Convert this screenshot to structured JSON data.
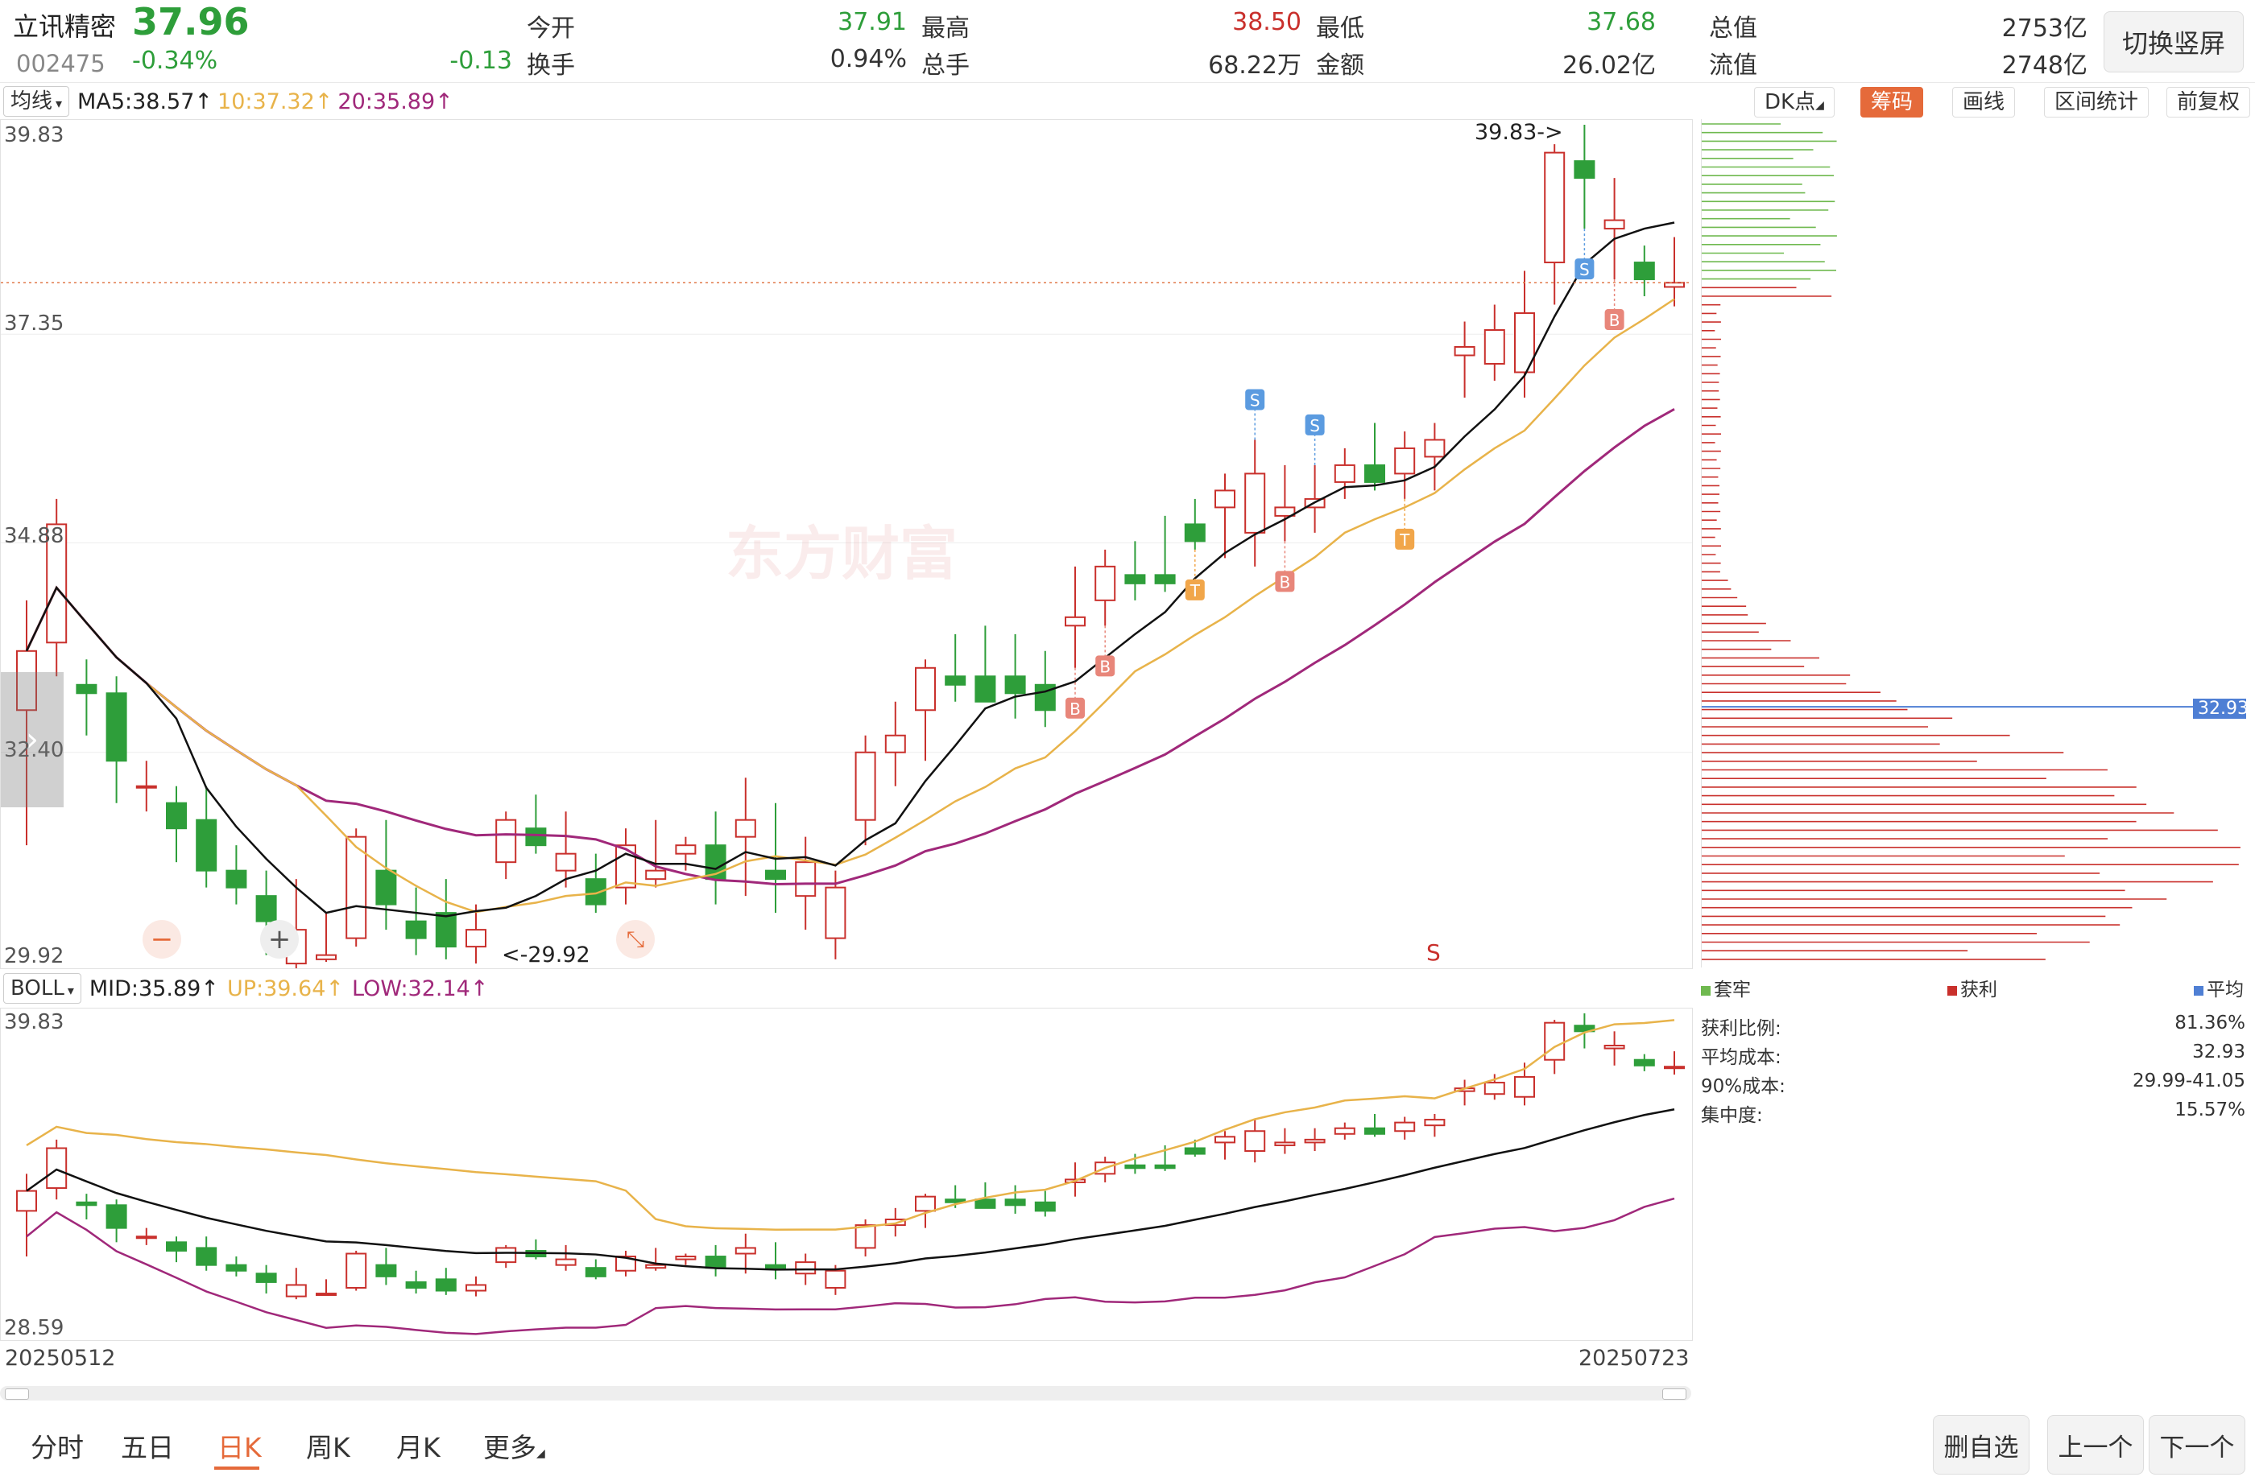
{
  "stock": {
    "name": "立讯精密",
    "price": "37.96",
    "code": "002475",
    "change_pct": "-0.34%",
    "change": "-0.13"
  },
  "quote": {
    "open_label": "今开",
    "open": "37.91",
    "high_label": "最高",
    "high": "38.50",
    "low_label": "最低",
    "low": "37.68",
    "mcap_label": "总值",
    "mcap": "2753亿",
    "turnover_label": "换手",
    "turnover": "0.94%",
    "volume_label": "总手",
    "volume": "68.22万",
    "amount_label": "金额",
    "amount": "26.02亿",
    "float_label": "流值",
    "float": "2748亿"
  },
  "switch_label": "切换竖屏",
  "main_indicator": {
    "selector": "均线",
    "ma5": "MA5:38.57↑",
    "ma10": "10:37.32↑",
    "ma20": "20:35.89↑"
  },
  "tools": {
    "dk": "DK点",
    "chip": "筹码",
    "draw": "画线",
    "range": "区间统计",
    "adjust": "前复权"
  },
  "main_axis": [
    "39.83",
    "37.35",
    "34.88",
    "32.40",
    "29.92"
  ],
  "main_annotations": {
    "high_mark": "39.83->",
    "low_mark": "<-29.92",
    "watermark": "东方财富",
    "s_marker": "S",
    "buy_marker": "B",
    "sell_marker": "S",
    "t_marker": "T"
  },
  "sub_indicator": {
    "selector": "BOLL",
    "mid": "MID:35.89↑",
    "up": "UP:39.64↑",
    "low": "LOW:32.14↑"
  },
  "sub_axis": [
    "39.83",
    "28.59"
  ],
  "dates": {
    "start": "20250512",
    "end": "20250723"
  },
  "chip": {
    "legend_trapped": "套牢",
    "legend_profit": "获利",
    "legend_avg": "平均",
    "avg_tag": "32.93",
    "profit_ratio_label": "获利比例:",
    "profit_ratio": "81.36%",
    "avg_cost_label": "平均成本:",
    "avg_cost": "32.93",
    "cost90_label": "90%成本:",
    "cost90": "29.99-41.05",
    "concentration_label": "集中度:",
    "concentration": "15.57%"
  },
  "nav": {
    "tabs": [
      "分时",
      "五日",
      "日K",
      "周K",
      "月K",
      "更多"
    ],
    "active": "日K"
  },
  "actions": {
    "remove": "删自选",
    "prev": "上一个",
    "next": "下一个"
  },
  "colors": {
    "up": "#c9302c",
    "down": "#2e9e3a",
    "ma5": "#111111",
    "ma10": "#e8b34a",
    "ma20": "#a0287a",
    "accent": "#e56a3a"
  },
  "chart_data": {
    "type": "candlestick",
    "title": "",
    "xlabel": "",
    "ylabel": "",
    "x_range": [
      "20250512",
      "20250723"
    ],
    "ylim": [
      29.92,
      39.83
    ],
    "ohlc_approx": [
      [
        32.9,
        34.2,
        31.3,
        33.6
      ],
      [
        33.7,
        35.4,
        33.3,
        35.1
      ],
      [
        33.2,
        33.5,
        32.6,
        33.1
      ],
      [
        33.1,
        33.3,
        31.8,
        32.3
      ],
      [
        32.0,
        32.3,
        31.7,
        32.0
      ],
      [
        31.8,
        32.0,
        31.1,
        31.5
      ],
      [
        31.6,
        32.0,
        30.8,
        31.0
      ],
      [
        31.0,
        31.3,
        30.6,
        30.8
      ],
      [
        30.7,
        31.0,
        30.0,
        30.4
      ],
      [
        29.9,
        30.9,
        29.8,
        30.3
      ],
      [
        29.95,
        30.5,
        29.92,
        30.0
      ],
      [
        30.2,
        31.5,
        30.1,
        31.4
      ],
      [
        31.0,
        31.6,
        30.3,
        30.6
      ],
      [
        30.4,
        30.8,
        30.0,
        30.2
      ],
      [
        30.5,
        30.9,
        29.95,
        30.1
      ],
      [
        30.1,
        30.6,
        29.9,
        30.3
      ],
      [
        31.1,
        31.7,
        30.9,
        31.6
      ],
      [
        31.5,
        31.9,
        31.2,
        31.3
      ],
      [
        31.0,
        31.7,
        30.8,
        31.2
      ],
      [
        30.9,
        31.2,
        30.5,
        30.6
      ],
      [
        30.8,
        31.5,
        30.6,
        31.3
      ],
      [
        30.9,
        31.6,
        30.8,
        31.0
      ],
      [
        31.2,
        31.4,
        31.0,
        31.3
      ],
      [
        31.3,
        31.7,
        30.6,
        30.9
      ],
      [
        31.4,
        32.1,
        30.7,
        31.6
      ],
      [
        31.0,
        31.8,
        30.5,
        30.9
      ],
      [
        30.7,
        31.4,
        30.3,
        31.1
      ],
      [
        30.2,
        31.0,
        29.95,
        30.8
      ],
      [
        31.6,
        32.6,
        31.3,
        32.4
      ],
      [
        32.4,
        33.0,
        32.0,
        32.6
      ],
      [
        32.9,
        33.5,
        32.3,
        33.4
      ],
      [
        33.3,
        33.8,
        33.0,
        33.2
      ],
      [
        33.3,
        33.9,
        33.0,
        33.0
      ],
      [
        33.3,
        33.8,
        32.8,
        33.1
      ],
      [
        33.2,
        33.6,
        32.7,
        32.9
      ],
      [
        33.9,
        34.6,
        33.4,
        34.0
      ],
      [
        34.2,
        34.8,
        33.9,
        34.6
      ],
      [
        34.5,
        34.9,
        34.2,
        34.4
      ],
      [
        34.5,
        35.2,
        34.3,
        34.4
      ],
      [
        35.1,
        35.4,
        34.8,
        34.9
      ],
      [
        35.3,
        35.7,
        34.7,
        35.5
      ],
      [
        35.0,
        36.1,
        34.6,
        35.7
      ],
      [
        35.2,
        35.8,
        34.9,
        35.3
      ],
      [
        35.3,
        35.8,
        35.0,
        35.4
      ],
      [
        35.6,
        36.0,
        35.4,
        35.8
      ],
      [
        35.8,
        36.3,
        35.5,
        35.6
      ],
      [
        35.7,
        36.2,
        35.4,
        36.0
      ],
      [
        35.9,
        36.3,
        35.5,
        36.1
      ],
      [
        37.1,
        37.5,
        36.6,
        37.2
      ],
      [
        37.0,
        37.7,
        36.8,
        37.4
      ],
      [
        36.9,
        38.1,
        36.6,
        37.6
      ],
      [
        38.2,
        39.6,
        37.7,
        39.5
      ],
      [
        39.4,
        39.83,
        38.6,
        39.2
      ],
      [
        38.6,
        39.2,
        38.0,
        38.7
      ],
      [
        38.2,
        38.4,
        37.8,
        38.0
      ],
      [
        37.91,
        38.5,
        37.68,
        37.96
      ]
    ],
    "series": [
      {
        "name": "MA5",
        "last": 38.57
      },
      {
        "name": "MA10",
        "last": 37.32
      },
      {
        "name": "MA20",
        "last": 35.89
      }
    ]
  }
}
